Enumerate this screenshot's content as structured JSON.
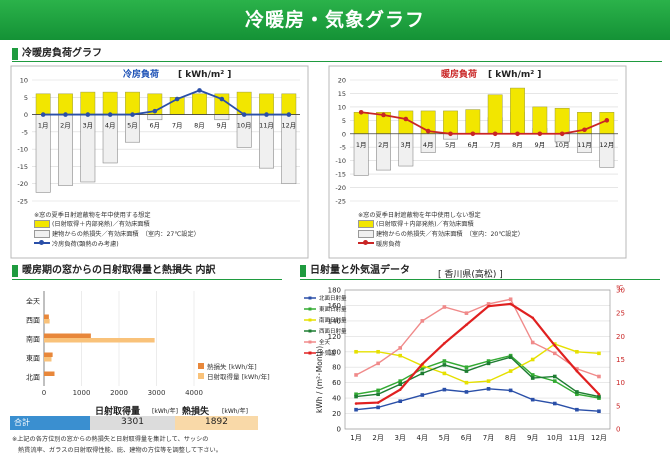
{
  "header": {
    "title": "冷暖房・気象グラフ"
  },
  "sections": {
    "load": "冷暖房負荷グラフ",
    "window": "暖房期の窓からの日射取得量と熱損失 内訳",
    "weather": "日射量と外気温データ"
  },
  "months": [
    "1月",
    "2月",
    "3月",
    "4月",
    "5月",
    "6月",
    "7月",
    "8月",
    "9月",
    "10月",
    "11月",
    "12月"
  ],
  "cooling": {
    "title": "冷房負荷",
    "unit": "[ kWh/m² ]",
    "y_ticks": [
      "10",
      "5",
      "0",
      "-5",
      "-10",
      "-15",
      "-20",
      "-25"
    ],
    "legend": [
      "※窓の夏季日射遮蔽物を年中使用する想定",
      "(日射取得＋内部発熱)／有効床面積",
      "建物からの熱損失／有効床面積　（室内：27℃設定）",
      "冷房負荷(顕熱のみ考慮)"
    ]
  },
  "heating": {
    "title": "暖房負荷",
    "unit": "[ kWh/m² ]",
    "y_ticks": [
      "20",
      "15",
      "10",
      "5",
      "0",
      "-5",
      "-10",
      "-15",
      "-20",
      "-25"
    ],
    "legend": [
      "※窓の夏季日射遮蔽物を年中使用しない想定",
      "(日射取得＋内部発熱)／有効床面積",
      "建物からの熱損失／有効床面積　（室内：20℃設定）",
      "暖房負荷"
    ]
  },
  "window_chart": {
    "directions": [
      "全天",
      "西面",
      "南面",
      "東面",
      "北面"
    ],
    "x_ticks": [
      "0",
      "1000",
      "2000",
      "3000",
      "4000"
    ],
    "legend": [
      "熱損失 [kWh/年]",
      "日射取得量 [kWh/年]"
    ],
    "col_labels": {
      "gain": "日射取得量",
      "gain_unit": "[kWh/年]",
      "loss": "熱損失",
      "loss_unit": "[kWh/年]"
    },
    "total": {
      "label": "合計",
      "gain": "3301",
      "loss": "1892"
    },
    "note1": "※上記の各方位別の窓からの熱損失と日射取得量を集計して、サッシの",
    "note2": "熱貫流率、ガラスの日射取得性能、庇、建物の方位等を調整して下さい。"
  },
  "weather_chart": {
    "location": "[ 香川県(高松) ]",
    "y_left_label": "kWh / (m²･Month)",
    "y_right_label": "℃",
    "y_left_ticks": [
      "0",
      "20",
      "40",
      "60",
      "80",
      "100",
      "120",
      "140",
      "160",
      "180"
    ],
    "y_right_ticks": [
      "0",
      "5",
      "10",
      "15",
      "20",
      "25",
      "30"
    ],
    "legend": [
      "北面日射量",
      "東面日射量",
      "南面日射量",
      "西面日射量",
      "全天",
      "外気温"
    ]
  },
  "chart_data": [
    {
      "type": "bar",
      "title": "冷房負荷",
      "ylabel": "kWh/m²",
      "categories": [
        "1月",
        "2月",
        "3月",
        "4月",
        "5月",
        "6月",
        "7月",
        "8月",
        "9月",
        "10月",
        "11月",
        "12月"
      ],
      "ylim": [
        -25,
        10
      ],
      "series": [
        {
          "name": "(日射取得＋内部発熱)／有効床面積",
          "kind": "bar",
          "color": "#f2e600",
          "values": [
            6,
            6,
            6.5,
            6.5,
            6.5,
            6,
            5,
            6,
            6,
            6.5,
            6,
            6
          ]
        },
        {
          "name": "建物からの熱損失／有効床面積",
          "kind": "bar",
          "color": "#f0f0f0",
          "values": [
            -22.5,
            -20.5,
            -19.5,
            -14,
            -8,
            -1.5,
            0,
            0,
            -1.5,
            -9.5,
            -15.5,
            -20
          ]
        },
        {
          "name": "冷房負荷(顕熱のみ考慮)",
          "kind": "line",
          "color": "#2a4fa8",
          "values": [
            0,
            0,
            0,
            0,
            0,
            1,
            4.5,
            7,
            4.5,
            0,
            0,
            0
          ]
        }
      ]
    },
    {
      "type": "bar",
      "title": "暖房負荷",
      "ylabel": "kWh/m²",
      "categories": [
        "1月",
        "2月",
        "3月",
        "4月",
        "5月",
        "6月",
        "7月",
        "8月",
        "9月",
        "10月",
        "11月",
        "12月"
      ],
      "ylim": [
        -25,
        20
      ],
      "series": [
        {
          "name": "(日射取得＋内部発熱)／有効床面積",
          "kind": "bar",
          "color": "#f2e600",
          "values": [
            8,
            8,
            8.5,
            8.5,
            8.5,
            9,
            14.5,
            17,
            10,
            9.5,
            8,
            8
          ]
        },
        {
          "name": "建物からの熱損失／有効床面積",
          "kind": "bar",
          "color": "#f0f0f0",
          "values": [
            -15.5,
            -13.5,
            -12,
            -7,
            -2,
            0,
            6,
            8,
            2,
            -3,
            -7,
            -12.5
          ]
        },
        {
          "name": "暖房負荷",
          "kind": "line",
          "color": "#c92525",
          "values": [
            8,
            7,
            5.5,
            1,
            0,
            0,
            0,
            0,
            0,
            0,
            1.5,
            5
          ]
        }
      ]
    },
    {
      "type": "bar",
      "orientation": "horizontal",
      "title": "暖房期の窓からの日射取得量と熱損失 内訳",
      "categories": [
        "全天",
        "西面",
        "南面",
        "東面",
        "北面"
      ],
      "xlim": [
        0,
        4000
      ],
      "series": [
        {
          "name": "熱損失 [kWh/年]",
          "color": "#e8873a",
          "values": [
            0,
            130,
            1250,
            230,
            280
          ]
        },
        {
          "name": "日射取得量 [kWh/年]",
          "color": "#f9c27a",
          "values": [
            0,
            150,
            2950,
            200,
            0
          ]
        }
      ]
    },
    {
      "type": "line",
      "title": "日射量と外気温データ",
      "categories": [
        "1月",
        "2月",
        "3月",
        "4月",
        "5月",
        "6月",
        "7月",
        "8月",
        "9月",
        "10月",
        "11月",
        "12月"
      ],
      "ylabel": "kWh / (m²･Month)",
      "ylim": [
        0,
        180
      ],
      "y2label": "℃",
      "y2lim": [
        0,
        30
      ],
      "series": [
        {
          "name": "北面日射量",
          "color": "#2a4fa8",
          "axis": "left",
          "values": [
            25,
            28,
            36,
            44,
            51,
            48,
            52,
            50,
            38,
            33,
            25,
            23
          ]
        },
        {
          "name": "東面日射量",
          "color": "#33aa33",
          "axis": "left",
          "values": [
            45,
            50,
            62,
            78,
            88,
            80,
            88,
            95,
            70,
            62,
            45,
            40
          ]
        },
        {
          "name": "南面日射量",
          "color": "#e6e000",
          "axis": "left",
          "values": [
            100,
            100,
            95,
            82,
            72,
            60,
            62,
            75,
            90,
            110,
            100,
            98
          ]
        },
        {
          "name": "西面日射量",
          "color": "#1e7d32",
          "axis": "left",
          "values": [
            42,
            45,
            58,
            72,
            83,
            75,
            85,
            93,
            66,
            68,
            48,
            42
          ]
        },
        {
          "name": "全天",
          "color": "#f08a8a",
          "axis": "left",
          "values": [
            70,
            85,
            105,
            140,
            158,
            150,
            162,
            168,
            112,
            98,
            78,
            68
          ]
        },
        {
          "name": "外気温",
          "color": "#e02020",
          "axis": "right",
          "values": [
            5.5,
            5.7,
            8.5,
            14,
            18.5,
            22.5,
            26.5,
            27,
            24,
            18,
            12.5,
            7.5
          ]
        }
      ]
    }
  ]
}
